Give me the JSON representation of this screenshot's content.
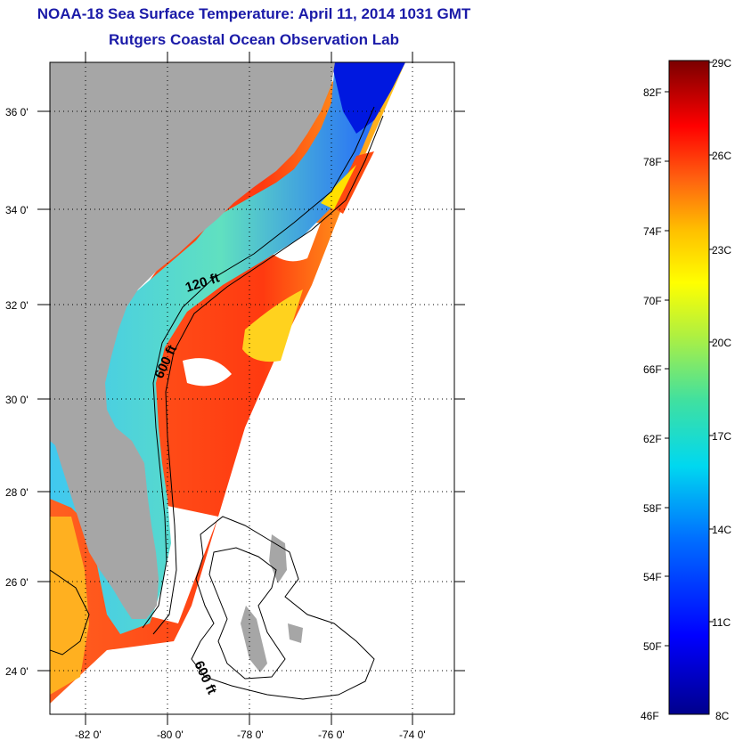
{
  "title": "NOAA-18 Sea Surface Temperature:  April 11, 2014 1031 GMT",
  "subtitle": "Rutgers Coastal Ocean Observation Lab",
  "map": {
    "lat_labels": [
      "36 0'",
      "34 0'",
      "32 0'",
      "30 0'",
      "28 0'",
      "26 0'",
      "24 0'"
    ],
    "lon_labels": [
      "-82 0'",
      "-80 0'",
      "-78 0'",
      "-76 0'",
      "-74 0'"
    ],
    "depth_labels": [
      "120 ft",
      "600 ft",
      "600 ft"
    ],
    "colors": {
      "land": "#a6a6a6",
      "ocean_missing": "#ffffff"
    }
  },
  "colorbar": {
    "fahrenheit_labels": [
      "82F",
      "78F",
      "74F",
      "70F",
      "66F",
      "62F",
      "58F",
      "54F",
      "50F",
      "46F"
    ],
    "celsius_labels": [
      "29C",
      "26C",
      "23C",
      "20C",
      "17C",
      "14C",
      "11C",
      "8C"
    ],
    "range_f": [
      46,
      84
    ],
    "range_c": [
      8,
      29
    ]
  }
}
